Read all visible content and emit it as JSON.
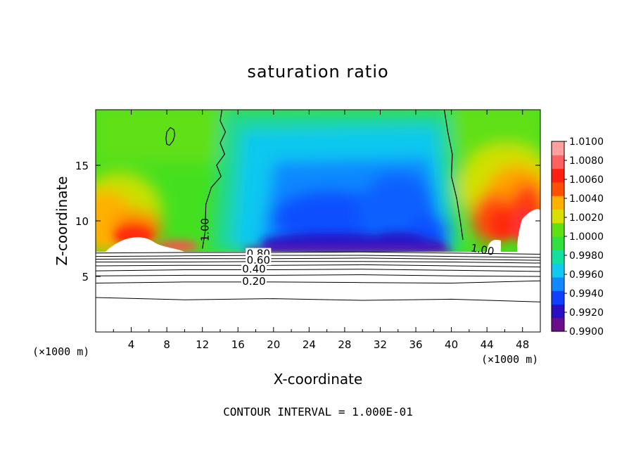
{
  "chart_data": {
    "type": "heatmap",
    "title": "saturation ratio",
    "xlabel": "X-coordinate",
    "ylabel": "Z-coordinate",
    "x_unit_label": "(×1000 m)",
    "footer": "CONTOUR INTERVAL = 1.000E-01",
    "xlim": [
      0,
      50
    ],
    "ylim": [
      0,
      20
    ],
    "x_ticks": [
      4,
      8,
      12,
      16,
      20,
      24,
      28,
      32,
      36,
      40,
      44,
      48
    ],
    "x_tick_labels": [
      "4",
      "8",
      "12",
      "16",
      "20",
      "24",
      "28",
      "32",
      "36",
      "40",
      "44",
      "48"
    ],
    "y_ticks": [
      5,
      10,
      15
    ],
    "y_tick_labels": [
      "5",
      "10",
      "15"
    ],
    "colorbar": {
      "min": 0.99,
      "max": 1.01,
      "tick_labels": [
        "1.0100",
        "1.0080",
        "1.0060",
        "1.0040",
        "1.0020",
        "1.0000",
        "0.9980",
        "0.9960",
        "0.9940",
        "0.9920",
        "0.9900"
      ],
      "colors": [
        "#6a0f8a",
        "#2a10c0",
        "#1040ff",
        "#1088ff",
        "#10c8f0",
        "#10e0a0",
        "#30e040",
        "#60e010",
        "#d8e000",
        "#ffb000",
        "#ff5000",
        "#ff2010",
        "#ff6060",
        "#ffa0a0"
      ]
    },
    "contour_labels": [
      "1.00",
      "1.00",
      "0.80",
      "0.60",
      "0.40",
      "0.20"
    ],
    "cloud_base_z": 7.3,
    "contour_lines": [
      {
        "value": 1.0,
        "label": "1.00",
        "points": [
          [
            14.2,
            20
          ],
          [
            14.0,
            19
          ],
          [
            14.6,
            18
          ],
          [
            14.0,
            17
          ],
          [
            14.5,
            16
          ],
          [
            13.6,
            15
          ],
          [
            14.1,
            14
          ],
          [
            13.0,
            13
          ],
          [
            12.4,
            11.5
          ],
          [
            12.3,
            9
          ],
          [
            12.0,
            7.5
          ]
        ]
      },
      {
        "value": 1.0,
        "label": "1.00",
        "points": [
          [
            39.2,
            20
          ],
          [
            39.6,
            18
          ],
          [
            40.1,
            16
          ],
          [
            40.0,
            14
          ],
          [
            40.6,
            12
          ],
          [
            41.0,
            10
          ],
          [
            41.3,
            8.3
          ]
        ]
      },
      {
        "value": 1.0,
        "label": "",
        "points": [
          [
            8.3,
            16.8
          ],
          [
            8.7,
            17.2
          ],
          [
            8.9,
            17.7
          ],
          [
            8.8,
            18.2
          ],
          [
            8.4,
            18.4
          ],
          [
            8.0,
            18.0
          ],
          [
            7.9,
            17.4
          ],
          [
            8.0,
            16.9
          ],
          [
            8.3,
            16.8
          ]
        ]
      },
      {
        "value": 0.9,
        "label": "",
        "points": [
          [
            0,
            7.1
          ],
          [
            10,
            7.15
          ],
          [
            20,
            7.15
          ],
          [
            30,
            7.2
          ],
          [
            40,
            7.1
          ],
          [
            50,
            7.0
          ]
        ]
      },
      {
        "value": 0.8,
        "label": "0.80",
        "points": [
          [
            0,
            6.8
          ],
          [
            10,
            6.85
          ],
          [
            20,
            6.9
          ],
          [
            30,
            6.9
          ],
          [
            40,
            6.8
          ],
          [
            50,
            6.7
          ]
        ]
      },
      {
        "value": 0.7,
        "label": "",
        "points": [
          [
            0,
            6.55
          ],
          [
            10,
            6.6
          ],
          [
            20,
            6.6
          ],
          [
            30,
            6.65
          ],
          [
            40,
            6.55
          ],
          [
            50,
            6.45
          ]
        ]
      },
      {
        "value": 0.6,
        "label": "0.60",
        "points": [
          [
            0,
            6.3
          ],
          [
            10,
            6.3
          ],
          [
            20,
            6.35
          ],
          [
            30,
            6.35
          ],
          [
            40,
            6.3
          ],
          [
            50,
            6.2
          ]
        ]
      },
      {
        "value": 0.5,
        "label": "",
        "points": [
          [
            0,
            5.95
          ],
          [
            10,
            6.0
          ],
          [
            20,
            6.0
          ],
          [
            30,
            6.05
          ],
          [
            40,
            5.95
          ],
          [
            50,
            5.85
          ]
        ]
      },
      {
        "value": 0.4,
        "label": "0.40",
        "points": [
          [
            0,
            5.5
          ],
          [
            10,
            5.6
          ],
          [
            20,
            5.6
          ],
          [
            30,
            5.65
          ],
          [
            40,
            5.55
          ],
          [
            50,
            5.45
          ]
        ]
      },
      {
        "value": 0.3,
        "label": "",
        "points": [
          [
            0,
            5.05
          ],
          [
            10,
            5.1
          ],
          [
            20,
            5.1
          ],
          [
            30,
            5.15
          ],
          [
            40,
            5.05
          ],
          [
            50,
            5.0
          ]
        ]
      },
      {
        "value": 0.2,
        "label": "0.20",
        "points": [
          [
            0,
            4.4
          ],
          [
            10,
            4.5
          ],
          [
            20,
            4.5
          ],
          [
            30,
            4.45
          ],
          [
            40,
            4.4
          ],
          [
            50,
            4.6
          ]
        ]
      },
      {
        "value": 0.1,
        "label": "",
        "points": [
          [
            0,
            3.1
          ],
          [
            10,
            2.9
          ],
          [
            20,
            3.0
          ],
          [
            30,
            2.85
          ],
          [
            40,
            2.95
          ],
          [
            50,
            2.7
          ]
        ]
      }
    ]
  }
}
